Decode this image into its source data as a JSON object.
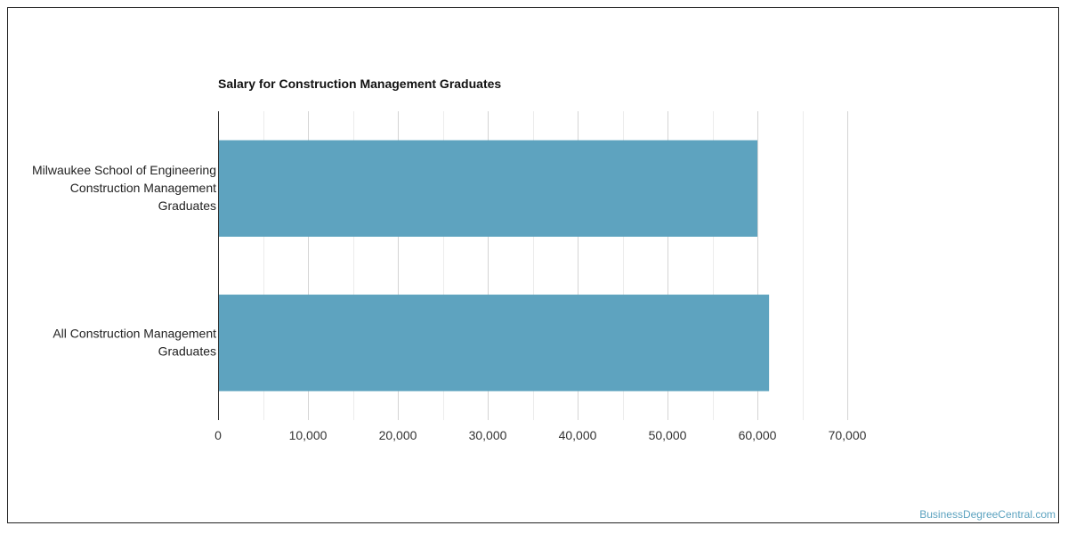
{
  "chart_data": {
    "type": "bar",
    "orientation": "horizontal",
    "title": "Salary for Construction Management Graduates",
    "xlabel": "",
    "ylabel": "",
    "categories": [
      [
        "Milwaukee School of Engineering",
        "Construction Management",
        "Graduates"
      ],
      [
        "All Construction Management",
        "Graduates"
      ]
    ],
    "values": [
      60000,
      61300
    ],
    "xlim": [
      0,
      70000
    ],
    "ticks": [
      0,
      10000,
      20000,
      30000,
      40000,
      50000,
      60000,
      70000
    ],
    "tick_labels": [
      "0",
      "10,000",
      "20,000",
      "30,000",
      "40,000",
      "50,000",
      "60,000",
      "70,000"
    ],
    "grid": true,
    "legend": "none",
    "bar_color": "#5ea3bf",
    "grid_color": "#d9d9d9"
  },
  "watermark": "BusinessDegreeCentral.com"
}
